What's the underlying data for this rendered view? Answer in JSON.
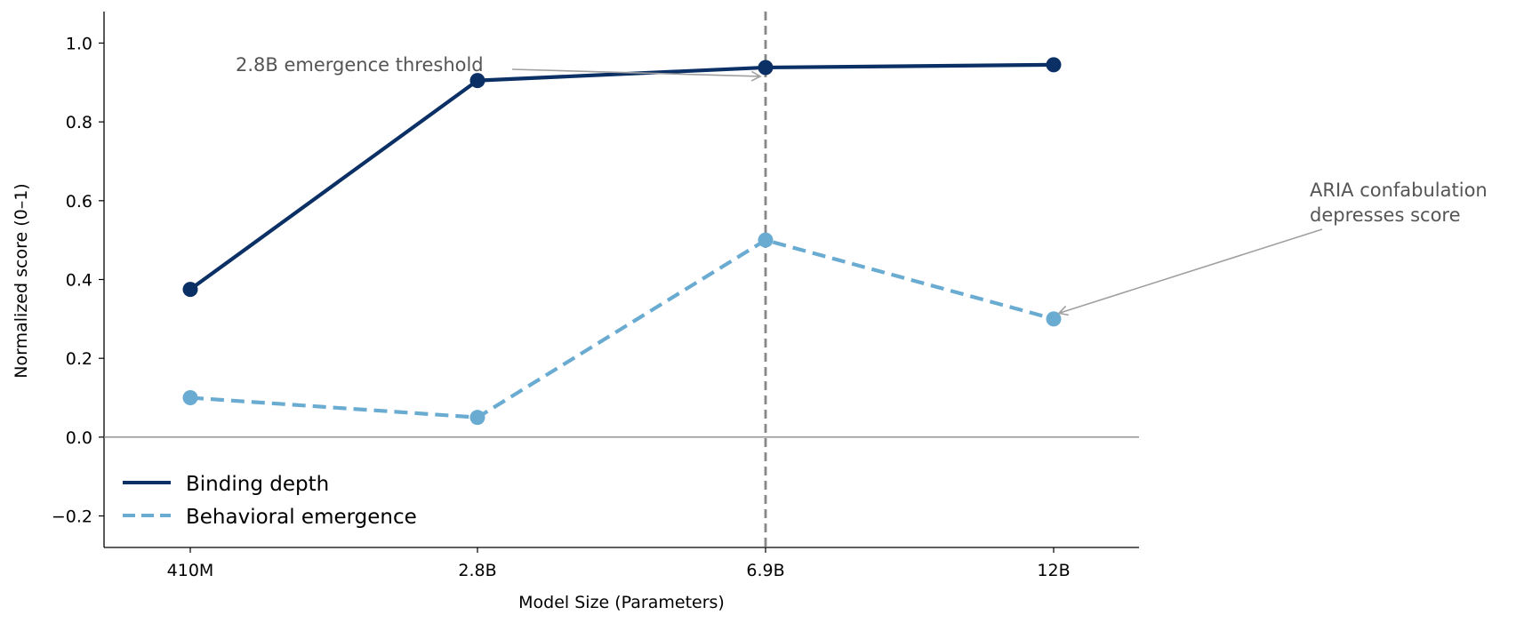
{
  "chart_data": {
    "type": "line",
    "categories": [
      "410M",
      "2.8B",
      "6.9B",
      "12B"
    ],
    "xlabel": "Model Size (Parameters)",
    "ylabel": "Normalized score (0–1)",
    "ylim": [
      -0.28,
      1.08
    ],
    "yticks": [
      -0.2,
      0.0,
      0.2,
      0.4,
      0.6,
      0.8,
      1.0
    ],
    "ytick_labels": [
      "−0.2",
      "0.0",
      "0.2",
      "0.4",
      "0.6",
      "0.8",
      "1.0"
    ],
    "series": [
      {
        "name": "Binding depth",
        "values": [
          0.375,
          0.905,
          0.938,
          0.945
        ],
        "color": "#0b3066",
        "style": "solid"
      },
      {
        "name": "Behavioral emergence",
        "values": [
          0.1,
          0.05,
          0.5,
          0.3
        ],
        "color": "#6aabd2",
        "style": "dashed"
      }
    ],
    "reference_lines": {
      "vertical_at_category": "6.9B",
      "horizontal_at": 0.0
    },
    "annotations": [
      {
        "text": "2.8B emergence threshold",
        "points_to_category": "6.9B",
        "points_to_value": 0.92
      },
      {
        "text_lines": [
          "ARIA confabulation",
          "depresses score"
        ],
        "points_to_category": "12B",
        "points_to_value": 0.31
      }
    ],
    "legend_position": "lower-left",
    "grid": false,
    "colors": {
      "axis": "#000000",
      "zero_line": "#888888",
      "vline": "#888888",
      "annotation_text": "#555555",
      "annotation_arrow": "#a0a0a0"
    }
  }
}
